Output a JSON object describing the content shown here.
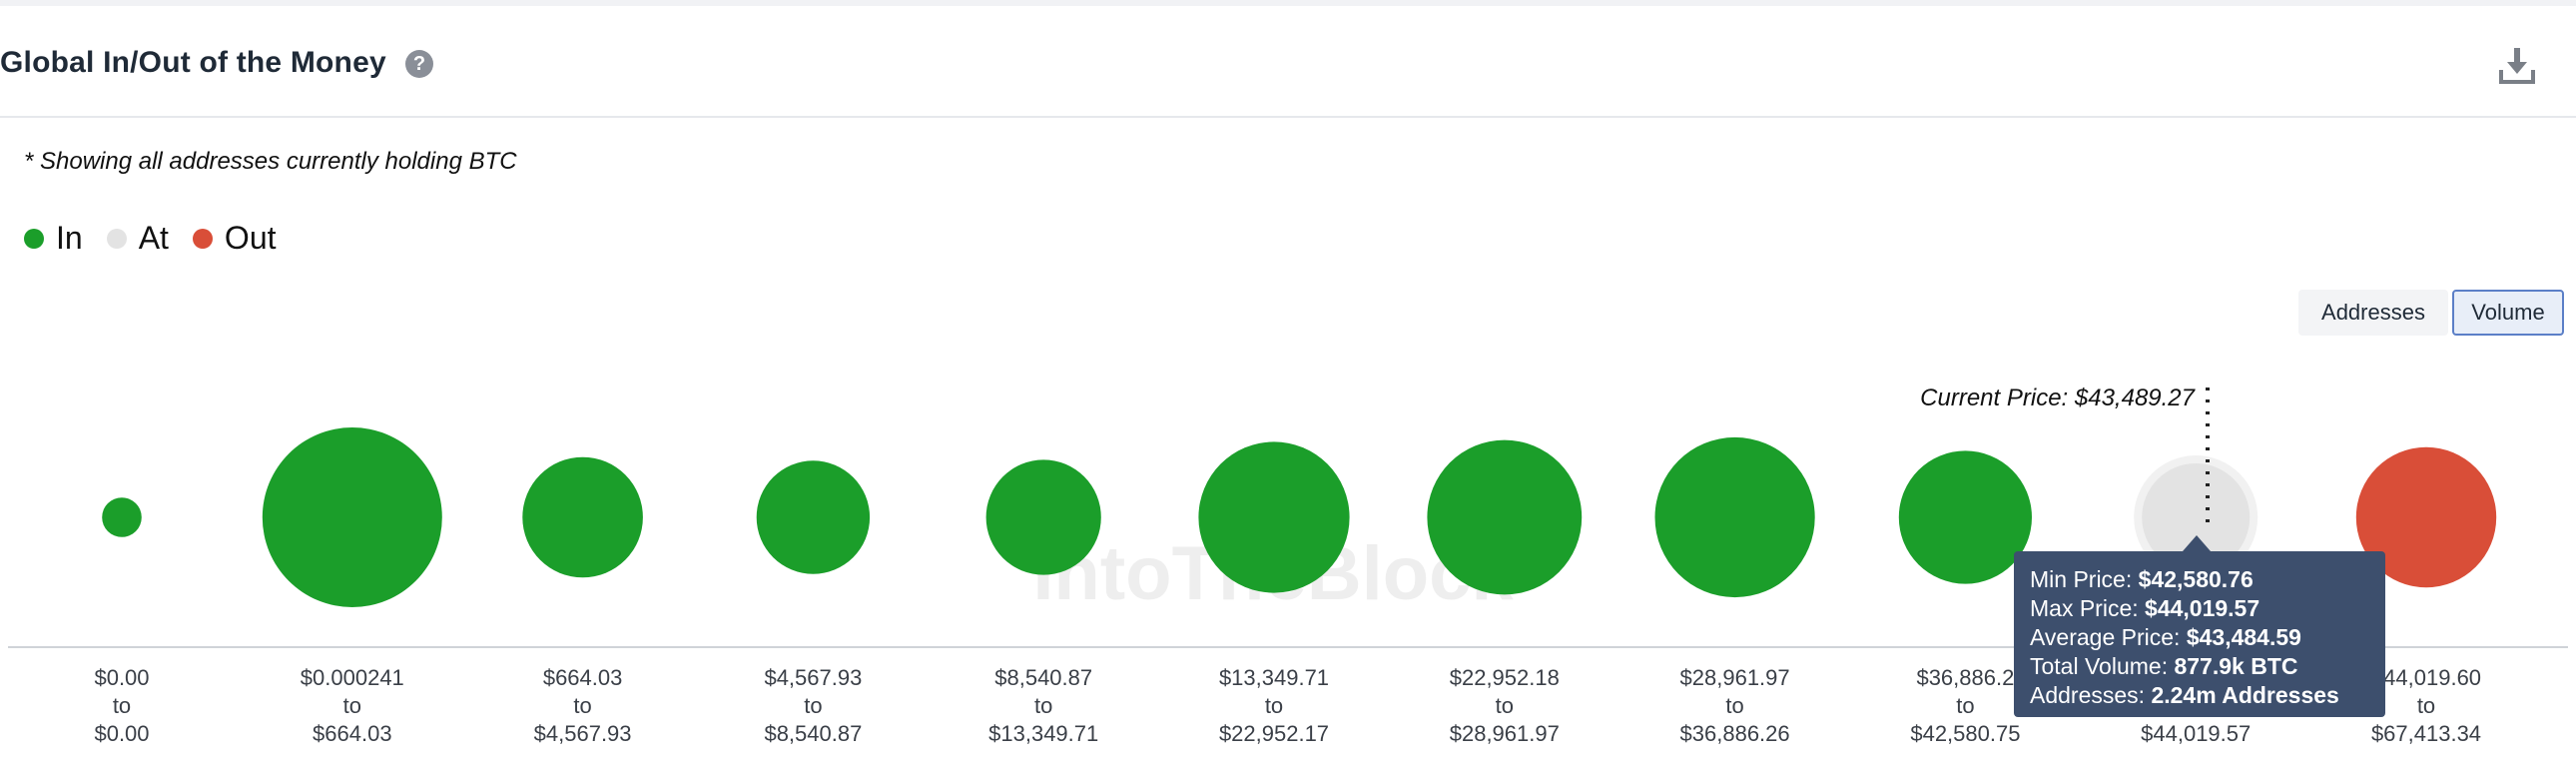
{
  "header": {
    "title": "Global In/Out of the Money",
    "help_icon": "question-circle-icon",
    "download_icon": "download-icon"
  },
  "note": "* Showing all addresses currently holding BTC",
  "legend": [
    {
      "label": "In",
      "color": "#1b9e2a"
    },
    {
      "label": "At",
      "color": "#e3e3e3"
    },
    {
      "label": "Out",
      "color": "#d94e38"
    }
  ],
  "toggle": {
    "addresses_label": "Addresses",
    "volume_label": "Volume",
    "selected": "Volume"
  },
  "watermark": "IntoTheBlock",
  "chart_data": {
    "type": "scatter",
    "encoding": "bubble size = volume",
    "categories": [
      {
        "from": "$0.00",
        "to": "$0.00",
        "status": "In"
      },
      {
        "from": "$0.000241",
        "to": "$664.03",
        "status": "In"
      },
      {
        "from": "$664.03",
        "to": "$4,567.93",
        "status": "In"
      },
      {
        "from": "$4,567.93",
        "to": "$8,540.87",
        "status": "In"
      },
      {
        "from": "$8,540.87",
        "to": "$13,349.71",
        "status": "In"
      },
      {
        "from": "$13,349.71",
        "to": "$22,952.17",
        "status": "In"
      },
      {
        "from": "$22,952.18",
        "to": "$28,961.97",
        "status": "In"
      },
      {
        "from": "$28,961.97",
        "to": "$36,886.26",
        "status": "In"
      },
      {
        "from": "$36,886.2",
        "to": "$42,580.75",
        "status": "In"
      },
      {
        "from": "",
        "to": "$44,019.57",
        "status": "At"
      },
      {
        "from": "$44,019.60",
        "to": "$67,413.34",
        "status": "Out"
      }
    ],
    "relative_size": [
      0.22,
      1.0,
      0.67,
      0.63,
      0.64,
      0.84,
      0.86,
      0.89,
      0.74,
      0.6,
      0.78
    ],
    "word_to": "to",
    "current_price_label": "Current Price: $43,489.27",
    "tooltip": {
      "rows": [
        {
          "label": "Min Price: ",
          "value": "$42,580.76"
        },
        {
          "label": "Max Price: ",
          "value": "$44,019.57"
        },
        {
          "label": "Average Price: ",
          "value": "$43,484.59"
        },
        {
          "label": "Total Volume: ",
          "value": "877.9k BTC"
        },
        {
          "label": "Addresses: ",
          "value": "2.24m Addresses"
        }
      ]
    }
  }
}
